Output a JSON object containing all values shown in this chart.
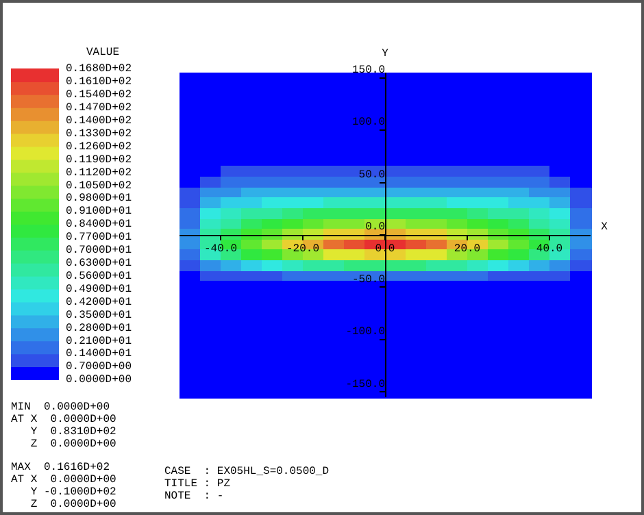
{
  "chart_data": {
    "type": "heatmap",
    "xlabel": "X",
    "ylabel": "Y",
    "clabel": "VALUE",
    "xlim": [
      -50,
      50
    ],
    "ylim": [
      -155,
      155
    ],
    "xticks": [
      {
        "value": -40,
        "label": "-40.0"
      },
      {
        "value": -20,
        "label": "-20.0"
      },
      {
        "value": 0,
        "label": "0.0"
      },
      {
        "value": 20,
        "label": "20.0"
      },
      {
        "value": 40,
        "label": "40.0"
      }
    ],
    "yticks": [
      {
        "value": -150,
        "label": "-150.0"
      },
      {
        "value": -100,
        "label": "-100.0"
      },
      {
        "value": -50,
        "label": "-50.0"
      },
      {
        "value": 0,
        "label": "0.0"
      },
      {
        "value": 50,
        "label": "50.0"
      },
      {
        "value": 100,
        "label": "100.0"
      },
      {
        "value": 150,
        "label": "150.0"
      }
    ],
    "clim": [
      0,
      16.8
    ],
    "cticks": [
      {
        "value": 0,
        "label": "0.0000D+00"
      },
      {
        "value": 0.7,
        "label": "0.7000D+00"
      },
      {
        "value": 1.4,
        "label": "0.1400D+01"
      },
      {
        "value": 2.1,
        "label": "0.2100D+01"
      },
      {
        "value": 2.8,
        "label": "0.2800D+01"
      },
      {
        "value": 3.5,
        "label": "0.3500D+01"
      },
      {
        "value": 4.2,
        "label": "0.4200D+01"
      },
      {
        "value": 4.9,
        "label": "0.4900D+01"
      },
      {
        "value": 5.6,
        "label": "0.5600D+01"
      },
      {
        "value": 6.3,
        "label": "0.6300D+01"
      },
      {
        "value": 7,
        "label": "0.7000D+01"
      },
      {
        "value": 7.7,
        "label": "0.7700D+01"
      },
      {
        "value": 8.4,
        "label": "0.8400D+01"
      },
      {
        "value": 9.1,
        "label": "0.9100D+01"
      },
      {
        "value": 9.8,
        "label": "0.9800D+01"
      },
      {
        "value": 10.5,
        "label": "0.1050D+02"
      },
      {
        "value": 11.2,
        "label": "0.1120D+02"
      },
      {
        "value": 11.9,
        "label": "0.1190D+02"
      },
      {
        "value": 12.6,
        "label": "0.1260D+02"
      },
      {
        "value": 13.3,
        "label": "0.1330D+02"
      },
      {
        "value": 14,
        "label": "0.1400D+02"
      },
      {
        "value": 14.7,
        "label": "0.1470D+02"
      },
      {
        "value": 15.4,
        "label": "0.1540D+02"
      },
      {
        "value": 16.1,
        "label": "0.1610D+02"
      },
      {
        "value": 16.8,
        "label": "0.1680D+02"
      }
    ],
    "cells": [
      [
        0,
        0,
        0,
        0,
        0,
        0,
        0,
        0,
        0,
        0,
        0,
        0,
        0,
        0,
        0,
        0,
        0,
        0,
        0,
        0
      ],
      [
        0,
        0,
        0,
        0,
        0,
        0,
        0,
        0,
        0,
        0,
        0,
        0,
        0,
        0,
        0,
        0,
        0,
        0,
        0,
        0
      ],
      [
        0,
        0,
        0,
        0,
        0,
        0,
        0,
        0,
        0,
        0,
        0,
        0,
        0,
        0,
        0,
        0,
        0,
        0,
        0,
        0
      ],
      [
        0,
        0,
        0,
        0,
        0,
        0,
        0,
        0,
        0,
        0,
        0,
        0,
        0,
        0,
        0,
        0,
        0,
        0,
        0,
        0
      ],
      [
        0,
        0,
        0,
        0,
        0,
        0,
        0,
        0,
        0,
        0,
        0,
        0,
        0,
        0,
        0,
        0,
        0,
        0,
        0,
        0
      ],
      [
        0,
        0,
        0,
        0,
        0,
        0,
        0,
        0,
        0,
        0,
        0,
        0,
        0,
        0,
        0,
        0,
        0,
        0,
        0,
        0
      ],
      [
        0,
        0,
        0,
        0,
        0,
        0,
        0,
        0,
        0,
        0,
        0,
        0,
        0,
        0,
        0,
        0,
        0,
        0,
        0,
        0
      ],
      [
        0,
        0,
        0,
        0,
        0,
        0,
        0,
        0,
        0,
        0,
        0,
        0,
        0,
        0,
        0,
        0,
        0,
        0,
        0,
        0
      ],
      [
        0,
        0,
        0,
        0,
        0,
        0,
        0,
        0,
        0,
        0,
        0,
        0,
        0,
        0,
        0,
        0,
        0,
        0,
        0,
        0
      ],
      [
        0.2,
        0.5,
        0.7,
        0.7,
        0.8,
        0.8,
        0.8,
        0.8,
        0.8,
        0.8,
        0.8,
        0.8,
        0.8,
        0.8,
        0.8,
        0.8,
        0.7,
        0.7,
        0.5,
        0.2
      ],
      [
        0.5,
        1.2,
        1.5,
        1.6,
        1.7,
        1.7,
        1.8,
        1.8,
        1.8,
        1.8,
        1.8,
        1.8,
        1.8,
        1.8,
        1.7,
        1.7,
        1.6,
        1.5,
        1.2,
        0.5
      ],
      [
        0.9,
        2.1,
        2.6,
        2.8,
        2.9,
        3.0,
        3.0,
        3.1,
        3.2,
        3.2,
        3.2,
        3.2,
        3.1,
        3.0,
        3.0,
        2.9,
        2.8,
        2.6,
        2.1,
        0.9
      ],
      [
        1.3,
        3.2,
        3.8,
        4.1,
        4.4,
        4.6,
        4.8,
        4.9,
        5.0,
        5.0,
        5.0,
        5.0,
        4.9,
        4.8,
        4.6,
        4.4,
        4.1,
        3.8,
        3.2,
        1.3
      ],
      [
        1.7,
        4.2,
        5.0,
        5.6,
        6.1,
        6.6,
        7.0,
        7.3,
        7.5,
        7.6,
        7.6,
        7.5,
        7.3,
        7.0,
        6.6,
        6.1,
        5.6,
        5.0,
        4.2,
        1.7
      ],
      [
        2.0,
        5.0,
        6.1,
        7.0,
        7.8,
        8.6,
        9.3,
        9.9,
        10.3,
        10.5,
        10.5,
        10.3,
        9.9,
        9.3,
        8.6,
        7.8,
        7.0,
        6.1,
        5.0,
        2.0
      ],
      [
        2.3,
        5.7,
        7.2,
        8.4,
        9.6,
        10.8,
        11.8,
        12.6,
        13.2,
        13.5,
        13.5,
        13.2,
        12.6,
        11.8,
        10.8,
        9.6,
        8.4,
        7.2,
        5.7,
        2.3
      ],
      [
        2.5,
        6.2,
        8.0,
        9.6,
        11.1,
        12.6,
        13.9,
        15.0,
        15.8,
        16.1,
        16.1,
        15.8,
        15.0,
        13.9,
        12.6,
        11.1,
        9.6,
        8.0,
        6.2,
        2.5
      ],
      [
        2.0,
        5.0,
        6.4,
        7.7,
        8.9,
        10.1,
        11.1,
        11.9,
        12.5,
        12.8,
        12.8,
        12.5,
        11.9,
        11.1,
        10.1,
        8.9,
        7.7,
        6.4,
        5.0,
        2.0
      ],
      [
        1.0,
        2.6,
        3.3,
        4.0,
        4.6,
        5.2,
        5.7,
        6.1,
        6.4,
        6.5,
        6.5,
        6.4,
        6.1,
        5.7,
        5.2,
        4.6,
        4.0,
        3.3,
        2.6,
        1.0
      ],
      [
        0.3,
        0.7,
        0.9,
        1.1,
        1.3,
        1.5,
        1.6,
        1.7,
        1.8,
        1.8,
        1.8,
        1.8,
        1.7,
        1.6,
        1.5,
        1.3,
        1.1,
        0.9,
        0.7,
        0.3
      ],
      [
        0,
        0,
        0,
        0,
        0,
        0,
        0,
        0,
        0,
        0,
        0,
        0,
        0,
        0,
        0,
        0,
        0,
        0,
        0,
        0
      ],
      [
        0,
        0,
        0,
        0,
        0,
        0,
        0,
        0,
        0,
        0,
        0,
        0,
        0,
        0,
        0,
        0,
        0,
        0,
        0,
        0
      ],
      [
        0,
        0,
        0,
        0,
        0,
        0,
        0,
        0,
        0,
        0,
        0,
        0,
        0,
        0,
        0,
        0,
        0,
        0,
        0,
        0
      ],
      [
        0,
        0,
        0,
        0,
        0,
        0,
        0,
        0,
        0,
        0,
        0,
        0,
        0,
        0,
        0,
        0,
        0,
        0,
        0,
        0
      ],
      [
        0,
        0,
        0,
        0,
        0,
        0,
        0,
        0,
        0,
        0,
        0,
        0,
        0,
        0,
        0,
        0,
        0,
        0,
        0,
        0
      ],
      [
        0,
        0,
        0,
        0,
        0,
        0,
        0,
        0,
        0,
        0,
        0,
        0,
        0,
        0,
        0,
        0,
        0,
        0,
        0,
        0
      ],
      [
        0,
        0,
        0,
        0,
        0,
        0,
        0,
        0,
        0,
        0,
        0,
        0,
        0,
        0,
        0,
        0,
        0,
        0,
        0,
        0
      ],
      [
        0,
        0,
        0,
        0,
        0,
        0,
        0,
        0,
        0,
        0,
        0,
        0,
        0,
        0,
        0,
        0,
        0,
        0,
        0,
        0
      ],
      [
        0,
        0,
        0,
        0,
        0,
        0,
        0,
        0,
        0,
        0,
        0,
        0,
        0,
        0,
        0,
        0,
        0,
        0,
        0,
        0
      ],
      [
        0,
        0,
        0,
        0,
        0,
        0,
        0,
        0,
        0,
        0,
        0,
        0,
        0,
        0,
        0,
        0,
        0,
        0,
        0,
        0
      ],
      [
        0,
        0,
        0,
        0,
        0,
        0,
        0,
        0,
        0,
        0,
        0,
        0,
        0,
        0,
        0,
        0,
        0,
        0,
        0,
        0
      ]
    ],
    "annotations": [
      "MIN  0.0000D+00",
      "AT X  0.0000D+00",
      "   Y  0.8310D+02",
      "   Z  0.0000D+00",
      "MAX  0.1616D+02",
      "AT X  0.0000D+00",
      "   Y -0.1000D+02",
      "   Z  0.0000D+00",
      "CASE  : EX05HL_S=0.0500_D",
      "TITLE : PZ",
      "NOTE  : -"
    ]
  }
}
